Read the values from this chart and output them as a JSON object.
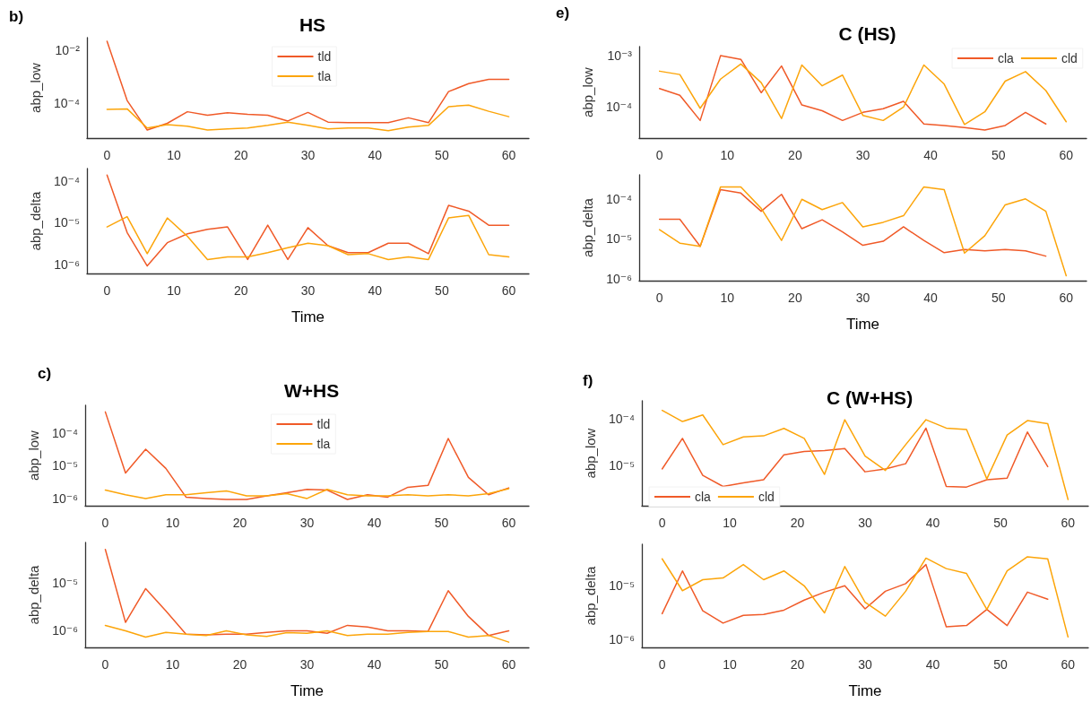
{
  "chart_data": [
    {
      "type": "line",
      "title": "HS",
      "annotations": [
        "b)"
      ],
      "ylabel": "abp_low",
      "legend": "top",
      "log": "y",
      "xlim": [
        -3,
        63
      ],
      "xticks": [
        0,
        10,
        20,
        30,
        40,
        50,
        60
      ],
      "ylim": [
        5e-06,
        0.03
      ],
      "yticks": [
        {
          "value": 0.0001,
          "label": "10⁻⁴"
        },
        {
          "value": 0.01,
          "label": "10⁻²"
        }
      ],
      "x": [
        0,
        3,
        6,
        9,
        12,
        15,
        18,
        21,
        24,
        27,
        30,
        33,
        36,
        39,
        42,
        45,
        48,
        51,
        54,
        57,
        60
      ],
      "series": [
        {
          "name": "tld",
          "color": "#f05a28",
          "values": [
            0.022,
            0.00013,
            1e-05,
            1.8e-05,
            4.9e-05,
            3.6e-05,
            4.5e-05,
            3.9e-05,
            3.6e-05,
            2.2e-05,
            4.6e-05,
            2e-05,
            1.9e-05,
            1.9e-05,
            1.9e-05,
            2.9e-05,
            1.9e-05,
            0.00028,
            0.00056,
            0.00081,
            0.00081
          ]
        },
        {
          "name": "tla",
          "color": "#fca50a",
          "values": [
            6e-05,
            6.3e-05,
            1.2e-05,
            1.6e-05,
            1.4e-05,
            1e-05,
            1.1e-05,
            1.2e-05,
            1.5e-05,
            2e-05,
            1.5e-05,
            1.1e-05,
            1.2e-05,
            1.2e-05,
            9.5e-06,
            1.3e-05,
            1.5e-05,
            7.6e-05,
            8.7e-05,
            5.1e-05,
            3.2e-05
          ]
        }
      ]
    },
    {
      "type": "line",
      "xlabel": "Time",
      "ylabel": "abp_delta",
      "log": "y",
      "xlim": [
        -3,
        63
      ],
      "xticks": [
        0,
        10,
        20,
        30,
        40,
        50,
        60
      ],
      "ylim": [
        6e-07,
        0.0002
      ],
      "yticks": [
        {
          "value": 1e-06,
          "label": "10⁻⁶"
        },
        {
          "value": 1e-05,
          "label": "10⁻⁵"
        },
        {
          "value": 0.0001,
          "label": "10⁻⁴"
        }
      ],
      "x": [
        0,
        3,
        6,
        9,
        12,
        15,
        18,
        21,
        24,
        27,
        30,
        33,
        36,
        39,
        42,
        45,
        48,
        51,
        54,
        57,
        60
      ],
      "series": [
        {
          "color": "#f05a28",
          "values": [
            0.00014,
            5.8e-06,
            9.1e-07,
            3.3e-06,
            5.4e-06,
            6.9e-06,
            7.9e-06,
            1.3e-06,
            8.7e-06,
            1.3e-06,
            7.6e-06,
            2.8e-06,
            1.9e-06,
            1.9e-06,
            3.2e-06,
            3.2e-06,
            1.8e-06,
            2.6e-05,
            1.9e-05,
            8.7e-06,
            8.7e-06
          ]
        },
        {
          "color": "#fca50a",
          "values": [
            7.9e-06,
            1.4e-05,
            1.8e-06,
            1.3e-05,
            4.7e-06,
            1.3e-06,
            1.5e-06,
            1.5e-06,
            1.9e-06,
            2.5e-06,
            3.2e-06,
            2.8e-06,
            1.7e-06,
            1.8e-06,
            1.3e-06,
            1.5e-06,
            1.3e-06,
            1.3e-05,
            1.5e-05,
            1.7e-06,
            1.5e-06
          ]
        }
      ]
    },
    {
      "type": "line",
      "title": "C (HS)",
      "annotations": [
        "e)"
      ],
      "ylabel": "abp_low",
      "legend": "top right",
      "log": "y",
      "xlim": [
        -3,
        63
      ],
      "xticks": [
        0,
        10,
        20,
        30,
        40,
        50,
        60
      ],
      "ylim": [
        2.5e-05,
        0.0015
      ],
      "yticks": [
        {
          "value": 0.0001,
          "label": "10⁻⁴"
        },
        {
          "value": 0.001,
          "label": "10⁻³"
        }
      ],
      "x": [
        0,
        3,
        6,
        9,
        12,
        15,
        18,
        21,
        24,
        27,
        30,
        33,
        36,
        39,
        42,
        45,
        48,
        51,
        54,
        57,
        60
      ],
      "series": [
        {
          "name": "cla",
          "color": "#f05a28",
          "values": [
            0.00023,
            0.00017,
            5.5e-05,
            0.001,
            0.00085,
            0.00019,
            0.00063,
            0.00011,
            8.5e-05,
            5.5e-05,
            7.9e-05,
            9.3e-05,
            0.00013,
            4.7e-05,
            4.4e-05,
            4e-05,
            3.6e-05,
            4.4e-05,
            7.9e-05,
            4.7e-05,
            null
          ]
        },
        {
          "name": "cld",
          "color": "#fca50a",
          "values": [
            0.0005,
            0.00043,
            9.5e-05,
            0.00035,
            0.00069,
            0.0003,
            6e-05,
            0.00066,
            0.00026,
            0.00042,
            6.9e-05,
            5.5e-05,
            0.0001,
            0.00066,
            0.00028,
            4.6e-05,
            8.1e-05,
            0.00032,
            0.00049,
            0.00021,
            5.2e-05
          ]
        }
      ]
    },
    {
      "type": "line",
      "xlabel": "Time",
      "ylabel": "abp_delta",
      "log": "y",
      "xlim": [
        -3,
        63
      ],
      "xticks": [
        0,
        10,
        20,
        30,
        40,
        50,
        60
      ],
      "ylim": [
        9e-07,
        0.0004
      ],
      "yticks": [
        {
          "value": 1e-06,
          "label": "10⁻⁶"
        },
        {
          "value": 1e-05,
          "label": "10⁻⁵"
        },
        {
          "value": 0.0001,
          "label": "10⁻⁴"
        }
      ],
      "x": [
        0,
        3,
        6,
        9,
        12,
        15,
        18,
        21,
        24,
        27,
        30,
        33,
        36,
        39,
        42,
        45,
        48,
        51,
        54,
        57,
        60
      ],
      "series": [
        {
          "color": "#f05a28",
          "values": [
            3.1e-05,
            3.1e-05,
            6.5e-06,
            0.00017,
            0.00014,
            4.9e-05,
            0.00013,
            1.8e-05,
            3e-05,
            1.5e-05,
            6.9e-06,
            8.7e-06,
            2e-05,
            9.1e-06,
            4.5e-06,
            5.4e-06,
            5e-06,
            5.4e-06,
            5e-06,
            3.7e-06,
            null
          ]
        },
        {
          "color": "#fca50a",
          "values": [
            1.7e-05,
            7.8e-06,
            6.5e-06,
            0.0002,
            0.0002,
            5.8e-05,
            9.1e-06,
            9.8e-05,
            5.4e-05,
            8.1e-05,
            2e-05,
            2.6e-05,
            3.8e-05,
            0.0002,
            0.00017,
            4.4e-06,
            1.2e-05,
            7.1e-05,
            0.0001,
            4.9e-05,
            1.2e-06
          ]
        }
      ]
    },
    {
      "type": "line",
      "title": "W+HS",
      "annotations": [
        "c)"
      ],
      "ylabel": "abp_low",
      "legend": "top",
      "log": "y",
      "xlim": [
        -3,
        63
      ],
      "xticks": [
        0,
        10,
        20,
        30,
        40,
        50,
        60
      ],
      "ylim": [
        6e-07,
        0.0007
      ],
      "yticks": [
        {
          "value": 1e-06,
          "label": "10⁻⁶"
        },
        {
          "value": 1e-05,
          "label": "10⁻⁵"
        },
        {
          "value": 0.0001,
          "label": "10⁻⁴"
        }
      ],
      "x": [
        0,
        3,
        6,
        9,
        12,
        15,
        18,
        21,
        24,
        27,
        30,
        33,
        36,
        39,
        42,
        45,
        48,
        51,
        54,
        57,
        60
      ],
      "series": [
        {
          "name": "tld",
          "color": "#f05a28",
          "values": [
            0.00044,
            6e-06,
            3.2e-05,
            8.3e-06,
            1.1e-06,
            1e-06,
            9.3e-07,
            9.3e-07,
            1.2e-06,
            1.5e-06,
            1.9e-06,
            1.8e-06,
            9.3e-07,
            1.3e-06,
            1.1e-06,
            2.2e-06,
            2.5e-06,
            6.8e-05,
            4.4e-06,
            1.3e-06,
            2.1e-06
          ]
        },
        {
          "name": "tla",
          "color": "#fca50a",
          "values": [
            1.8e-06,
            1.3e-06,
            1e-06,
            1.3e-06,
            1.3e-06,
            1.5e-06,
            1.7e-06,
            1.2e-06,
            1.2e-06,
            1.4e-06,
            1e-06,
            1.9e-06,
            1.3e-06,
            1.2e-06,
            1.2e-06,
            1.3e-06,
            1.2e-06,
            1.3e-06,
            1.2e-06,
            1.4e-06,
            2e-06
          ]
        }
      ]
    },
    {
      "type": "line",
      "xlabel": "Time",
      "ylabel": "abp_delta",
      "log": "y",
      "xlim": [
        -3,
        63
      ],
      "xticks": [
        0,
        10,
        20,
        30,
        40,
        50,
        60
      ],
      "ylim": [
        4.5e-07,
        7e-05
      ],
      "yticks": [
        {
          "value": 1e-06,
          "label": "10⁻⁶"
        },
        {
          "value": 1e-05,
          "label": "10⁻⁵"
        }
      ],
      "x": [
        0,
        3,
        6,
        9,
        12,
        15,
        18,
        21,
        24,
        27,
        30,
        33,
        36,
        39,
        42,
        45,
        48,
        51,
        54,
        57,
        60
      ],
      "series": [
        {
          "color": "#f05a28",
          "values": [
            5e-05,
            1.5e-06,
            7.6e-06,
            2.6e-06,
            8.5e-07,
            8.2e-07,
            8.5e-07,
            8.5e-07,
            9.3e-07,
            1e-06,
            1e-06,
            8.9e-07,
            1.3e-06,
            1.2e-06,
            1e-06,
            1e-06,
            9.7e-07,
            6.9e-06,
            2e-06,
            8e-07,
            1e-06
          ]
        },
        {
          "color": "#fca50a",
          "values": [
            1.3e-06,
            1e-06,
            7.4e-07,
            9.3e-07,
            8.5e-07,
            8e-07,
            1e-06,
            8.2e-07,
            7.6e-07,
            9.2e-07,
            8.9e-07,
            1e-06,
            8e-07,
            8.5e-07,
            8.5e-07,
            9.3e-07,
            9.7e-07,
            9.7e-07,
            7.4e-07,
            8e-07,
            5.8e-07
          ]
        }
      ]
    },
    {
      "type": "line",
      "title": "C (W+HS)",
      "annotations": [
        "f)"
      ],
      "ylabel": "abp_low",
      "legend": "bottom left",
      "log": "y",
      "xlim": [
        -3,
        63
      ],
      "xticks": [
        0,
        10,
        20,
        30,
        40,
        50,
        60
      ],
      "ylim": [
        1.4e-06,
        0.00024
      ],
      "yticks": [
        {
          "value": 1e-05,
          "label": "10⁻⁵"
        },
        {
          "value": 0.0001,
          "label": "10⁻⁴"
        }
      ],
      "x": [
        0,
        3,
        6,
        9,
        12,
        15,
        18,
        21,
        24,
        27,
        30,
        33,
        36,
        39,
        42,
        45,
        48,
        51,
        54,
        57,
        60
      ],
      "series": [
        {
          "name": "cla",
          "color": "#f05a28",
          "values": [
            8.5e-06,
            3.8e-05,
            6.2e-06,
            3.6e-06,
            4.3e-06,
            5e-06,
            1.7e-05,
            2e-05,
            2.1e-05,
            2.3e-05,
            7.4e-06,
            8.5e-06,
            1.1e-05,
            6.3e-05,
            3.6e-06,
            3.5e-06,
            5e-06,
            5.4e-06,
            5.2e-05,
            9.5e-06,
            null
          ]
        },
        {
          "name": "cld",
          "color": "#fca50a",
          "values": [
            0.00015,
            8.7e-05,
            0.00012,
            2.8e-05,
            4.1e-05,
            4.3e-05,
            6.2e-05,
            3.8e-05,
            6.5e-06,
            9.5e-05,
            1.6e-05,
            7.9e-06,
            2.8e-05,
            9.5e-05,
            6.3e-05,
            5.9e-05,
            5.2e-06,
            4.5e-05,
            9.1e-05,
            7.8e-05,
            1.9e-06
          ]
        }
      ]
    },
    {
      "type": "line",
      "xlabel": "Time",
      "ylabel": "abp_delta",
      "log": "y",
      "xlim": [
        -3,
        63
      ],
      "xticks": [
        0,
        10,
        20,
        30,
        40,
        50,
        60
      ],
      "ylim": [
        7e-07,
        6e-05
      ],
      "yticks": [
        {
          "value": 1e-06,
          "label": "10⁻⁶"
        },
        {
          "value": 1e-05,
          "label": "10⁻⁵"
        }
      ],
      "x": [
        0,
        3,
        6,
        9,
        12,
        15,
        18,
        21,
        24,
        27,
        30,
        33,
        36,
        39,
        42,
        45,
        48,
        51,
        54,
        57,
        60
      ],
      "series": [
        {
          "color": "#f05a28",
          "values": [
            3e-06,
            1.9e-05,
            3.4e-06,
            2e-06,
            2.8e-06,
            2.9e-06,
            3.5e-06,
            5.4e-06,
            7.6e-06,
            1e-05,
            3.7e-06,
            7.9e-06,
            1.1e-05,
            2.5e-05,
            1.7e-06,
            1.8e-06,
            3.6e-06,
            1.8e-06,
            7.6e-06,
            5.6e-06,
            null
          ]
        },
        {
          "color": "#fca50a",
          "values": [
            3.2e-05,
            8.1e-06,
            1.3e-05,
            1.4e-05,
            2.5e-05,
            1.3e-05,
            1.9e-05,
            1e-05,
            3.1e-06,
            2.3e-05,
            4.9e-06,
            2.7e-06,
            7.9e-06,
            3.3e-05,
            2.1e-05,
            1.7e-05,
            3.6e-06,
            1.9e-05,
            3.5e-05,
            3.2e-05,
            1.1e-06
          ]
        }
      ]
    }
  ]
}
